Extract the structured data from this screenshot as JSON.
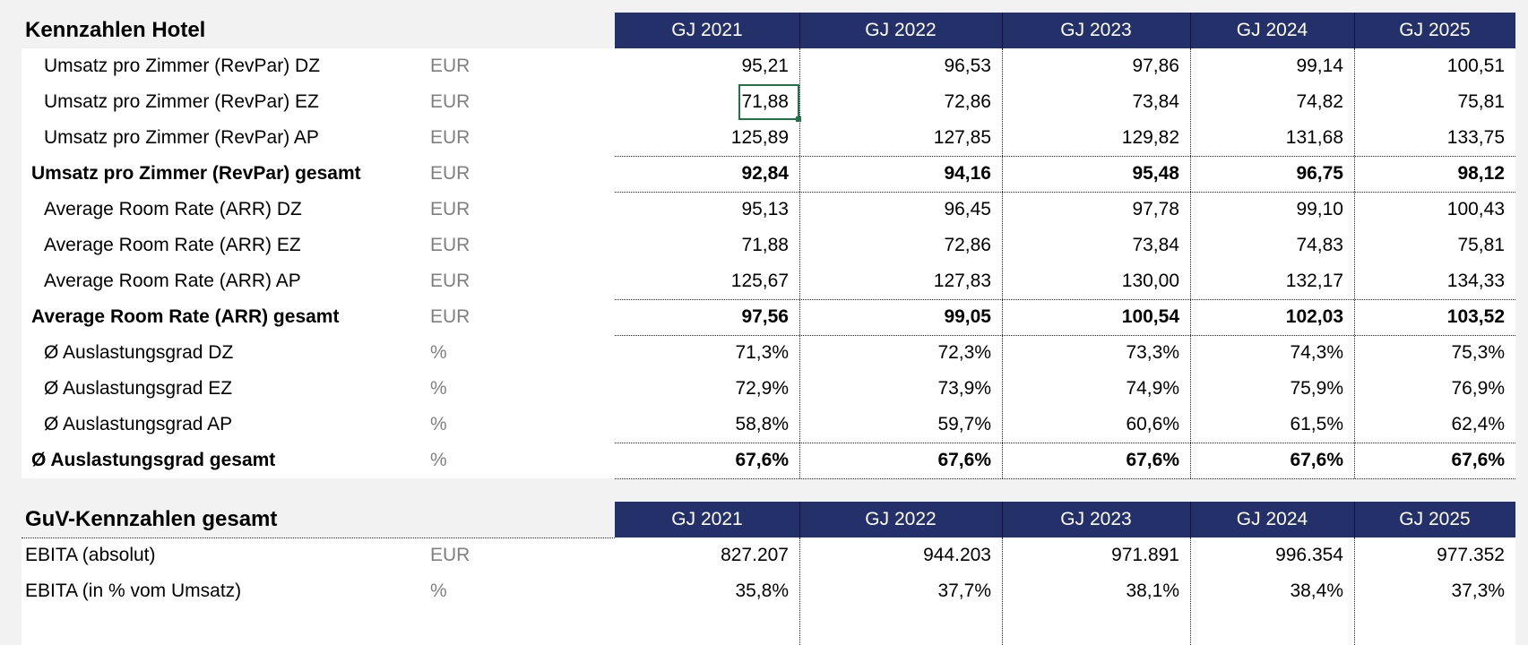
{
  "colors": {
    "header_bg": "#24306a",
    "header_text": "#ffffff",
    "unit_text": "#808080",
    "selection": "#217346"
  },
  "years": [
    "GJ 2021",
    "GJ 2022",
    "GJ 2023",
    "GJ 2024",
    "GJ 2025"
  ],
  "hotel": {
    "title": "Kennzahlen Hotel",
    "rows": [
      {
        "label": "Umsatz pro Zimmer (RevPar) DZ",
        "unit": "EUR",
        "values": [
          "95,21",
          "96,53",
          "97,86",
          "99,14",
          "100,51"
        ],
        "style": "indent"
      },
      {
        "label": "Umsatz pro Zimmer (RevPar) EZ",
        "unit": "EUR",
        "values": [
          "71,88",
          "72,86",
          "73,84",
          "74,82",
          "75,81"
        ],
        "style": "indent"
      },
      {
        "label": "Umsatz pro Zimmer (RevPar) AP",
        "unit": "EUR",
        "values": [
          "125,89",
          "127,85",
          "129,82",
          "131,68",
          "133,75"
        ],
        "style": "indent"
      },
      {
        "label": "Umsatz pro Zimmer (RevPar) gesamt",
        "unit": "EUR",
        "values": [
          "92,84",
          "94,16",
          "95,48",
          "96,75",
          "98,12"
        ],
        "style": "bold"
      },
      {
        "label": "Average Room Rate (ARR) DZ",
        "unit": "EUR",
        "values": [
          "95,13",
          "96,45",
          "97,78",
          "99,10",
          "100,43"
        ],
        "style": "indent"
      },
      {
        "label": "Average Room Rate (ARR) EZ",
        "unit": "EUR",
        "values": [
          "71,88",
          "72,86",
          "73,84",
          "74,83",
          "75,81"
        ],
        "style": "indent"
      },
      {
        "label": "Average Room Rate (ARR) AP",
        "unit": "EUR",
        "values": [
          "125,67",
          "127,83",
          "130,00",
          "132,17",
          "134,33"
        ],
        "style": "indent"
      },
      {
        "label": "Average Room Rate (ARR) gesamt",
        "unit": "EUR",
        "values": [
          "97,56",
          "99,05",
          "100,54",
          "102,03",
          "103,52"
        ],
        "style": "bold"
      },
      {
        "label": "Ø Auslastungsgrad DZ",
        "unit": "%",
        "values": [
          "71,3%",
          "72,3%",
          "73,3%",
          "74,3%",
          "75,3%"
        ],
        "style": "indent"
      },
      {
        "label": "Ø Auslastungsgrad EZ",
        "unit": "%",
        "values": [
          "72,9%",
          "73,9%",
          "74,9%",
          "75,9%",
          "76,9%"
        ],
        "style": "indent"
      },
      {
        "label": "Ø Auslastungsgrad AP",
        "unit": "%",
        "values": [
          "58,8%",
          "59,7%",
          "60,6%",
          "61,5%",
          "62,4%"
        ],
        "style": "indent"
      },
      {
        "label": "Ø Auslastungsgrad gesamt",
        "unit": "%",
        "values": [
          "67,6%",
          "67,6%",
          "67,6%",
          "67,6%",
          "67,6%"
        ],
        "style": "bold"
      }
    ]
  },
  "guv": {
    "title": "GuV-Kennzahlen gesamt",
    "rows": [
      {
        "label": "EBITA (absolut)",
        "unit": "EUR",
        "values": [
          "827.207",
          "944.203",
          "971.891",
          "996.354",
          "977.352"
        ],
        "style": "plain"
      },
      {
        "label": "EBITA (in % vom Umsatz)",
        "unit": "%",
        "values": [
          "35,8%",
          "37,7%",
          "38,1%",
          "38,4%",
          "37,3%"
        ],
        "style": "plain"
      }
    ]
  },
  "selected_cell": {
    "section": "hotel",
    "row": 1,
    "col": 0
  }
}
